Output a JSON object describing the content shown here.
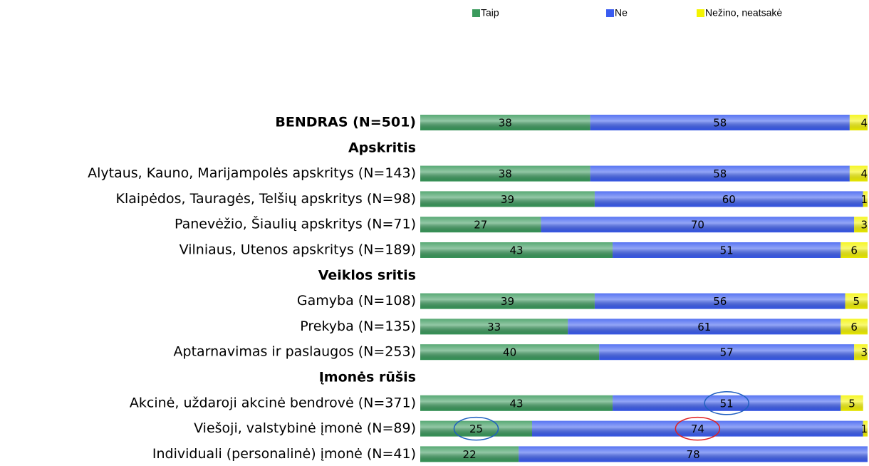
{
  "chart_data": {
    "type": "stacked_bar_horizontal",
    "categories": [
      "BENDRAS (N=501)",
      "Apskritis",
      "Alytaus, Kauno, Marijampolės apskritys (N=143)",
      "Klaipėdos, Tauragės, Telšių apskritys (N=98)",
      "Panevėžio, Šiaulių apskritys (N=71)",
      "Vilniaus, Utenos apskritys (N=189)",
      "Veiklos sritis",
      "Gamyba (N=108)",
      "Prekyba (N=135)",
      "Aptarnavimas ir paslaugos (N=253)",
      "Įmonės rūšis",
      "Akcinė, uždaroji akcinė bendrovė (N=371)",
      "Viešoji, valstybinė įmonė (N=89)",
      "Individuali (personalinė) įmonė (N=41)"
    ],
    "series": [
      {
        "name": "Taip",
        "color": "#3a9a5c",
        "values": [
          38,
          null,
          38,
          39,
          27,
          43,
          null,
          39,
          33,
          40,
          null,
          43,
          25,
          22
        ]
      },
      {
        "name": "Ne",
        "color": "#3a5cf0",
        "values": [
          58,
          null,
          58,
          60,
          70,
          51,
          null,
          56,
          61,
          57,
          null,
          51,
          74,
          78
        ]
      },
      {
        "name": "Nežino, neatsakė",
        "color": "#f4f400",
        "values": [
          4,
          null,
          4,
          1,
          3,
          6,
          null,
          5,
          6,
          3,
          null,
          5,
          1,
          null
        ]
      }
    ],
    "xlim": [
      0,
      100
    ],
    "legend": "top",
    "circled": [
      {
        "series": 1,
        "index": 11,
        "color": "#1f5fbf"
      },
      {
        "series": 0,
        "index": 12,
        "color": "#1f5fbf"
      },
      {
        "series": 1,
        "index": 12,
        "color": "#e02020"
      }
    ]
  }
}
